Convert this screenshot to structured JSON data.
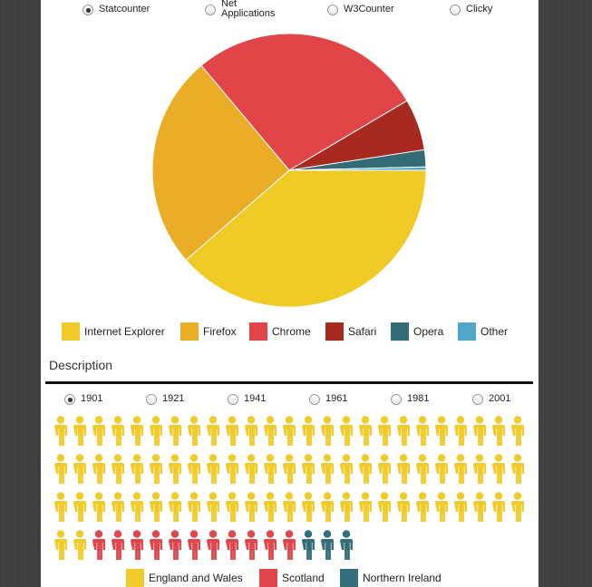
{
  "source_options": [
    "Statcounter",
    "Net Applications",
    "W3Counter",
    "Clicky"
  ],
  "source_selected": 0,
  "description": "Description",
  "year_options": [
    "1901",
    "1921",
    "1941",
    "1961",
    "1981",
    "2001"
  ],
  "year_selected": 0,
  "chart_data": [
    {
      "type": "pie",
      "categories": [
        "Internet Explorer",
        "Firefox",
        "Chrome",
        "Safari",
        "Opera",
        "Other"
      ],
      "values": [
        38.6,
        25.3,
        27.6,
        6.1,
        2.0,
        0.4
      ],
      "colors": [
        "#f0cb25",
        "#ecad26",
        "#e24547",
        "#a8291f",
        "#336b77",
        "#4fa8cc"
      ]
    },
    {
      "type": "pictogram",
      "categories": [
        "England and Wales",
        "Scotland",
        "Northern Ireland"
      ],
      "values": [
        77,
        11,
        3
      ],
      "colors": [
        "#f0cb2a",
        "#e0474c",
        "#336e7b"
      ],
      "per_row": 25
    }
  ]
}
